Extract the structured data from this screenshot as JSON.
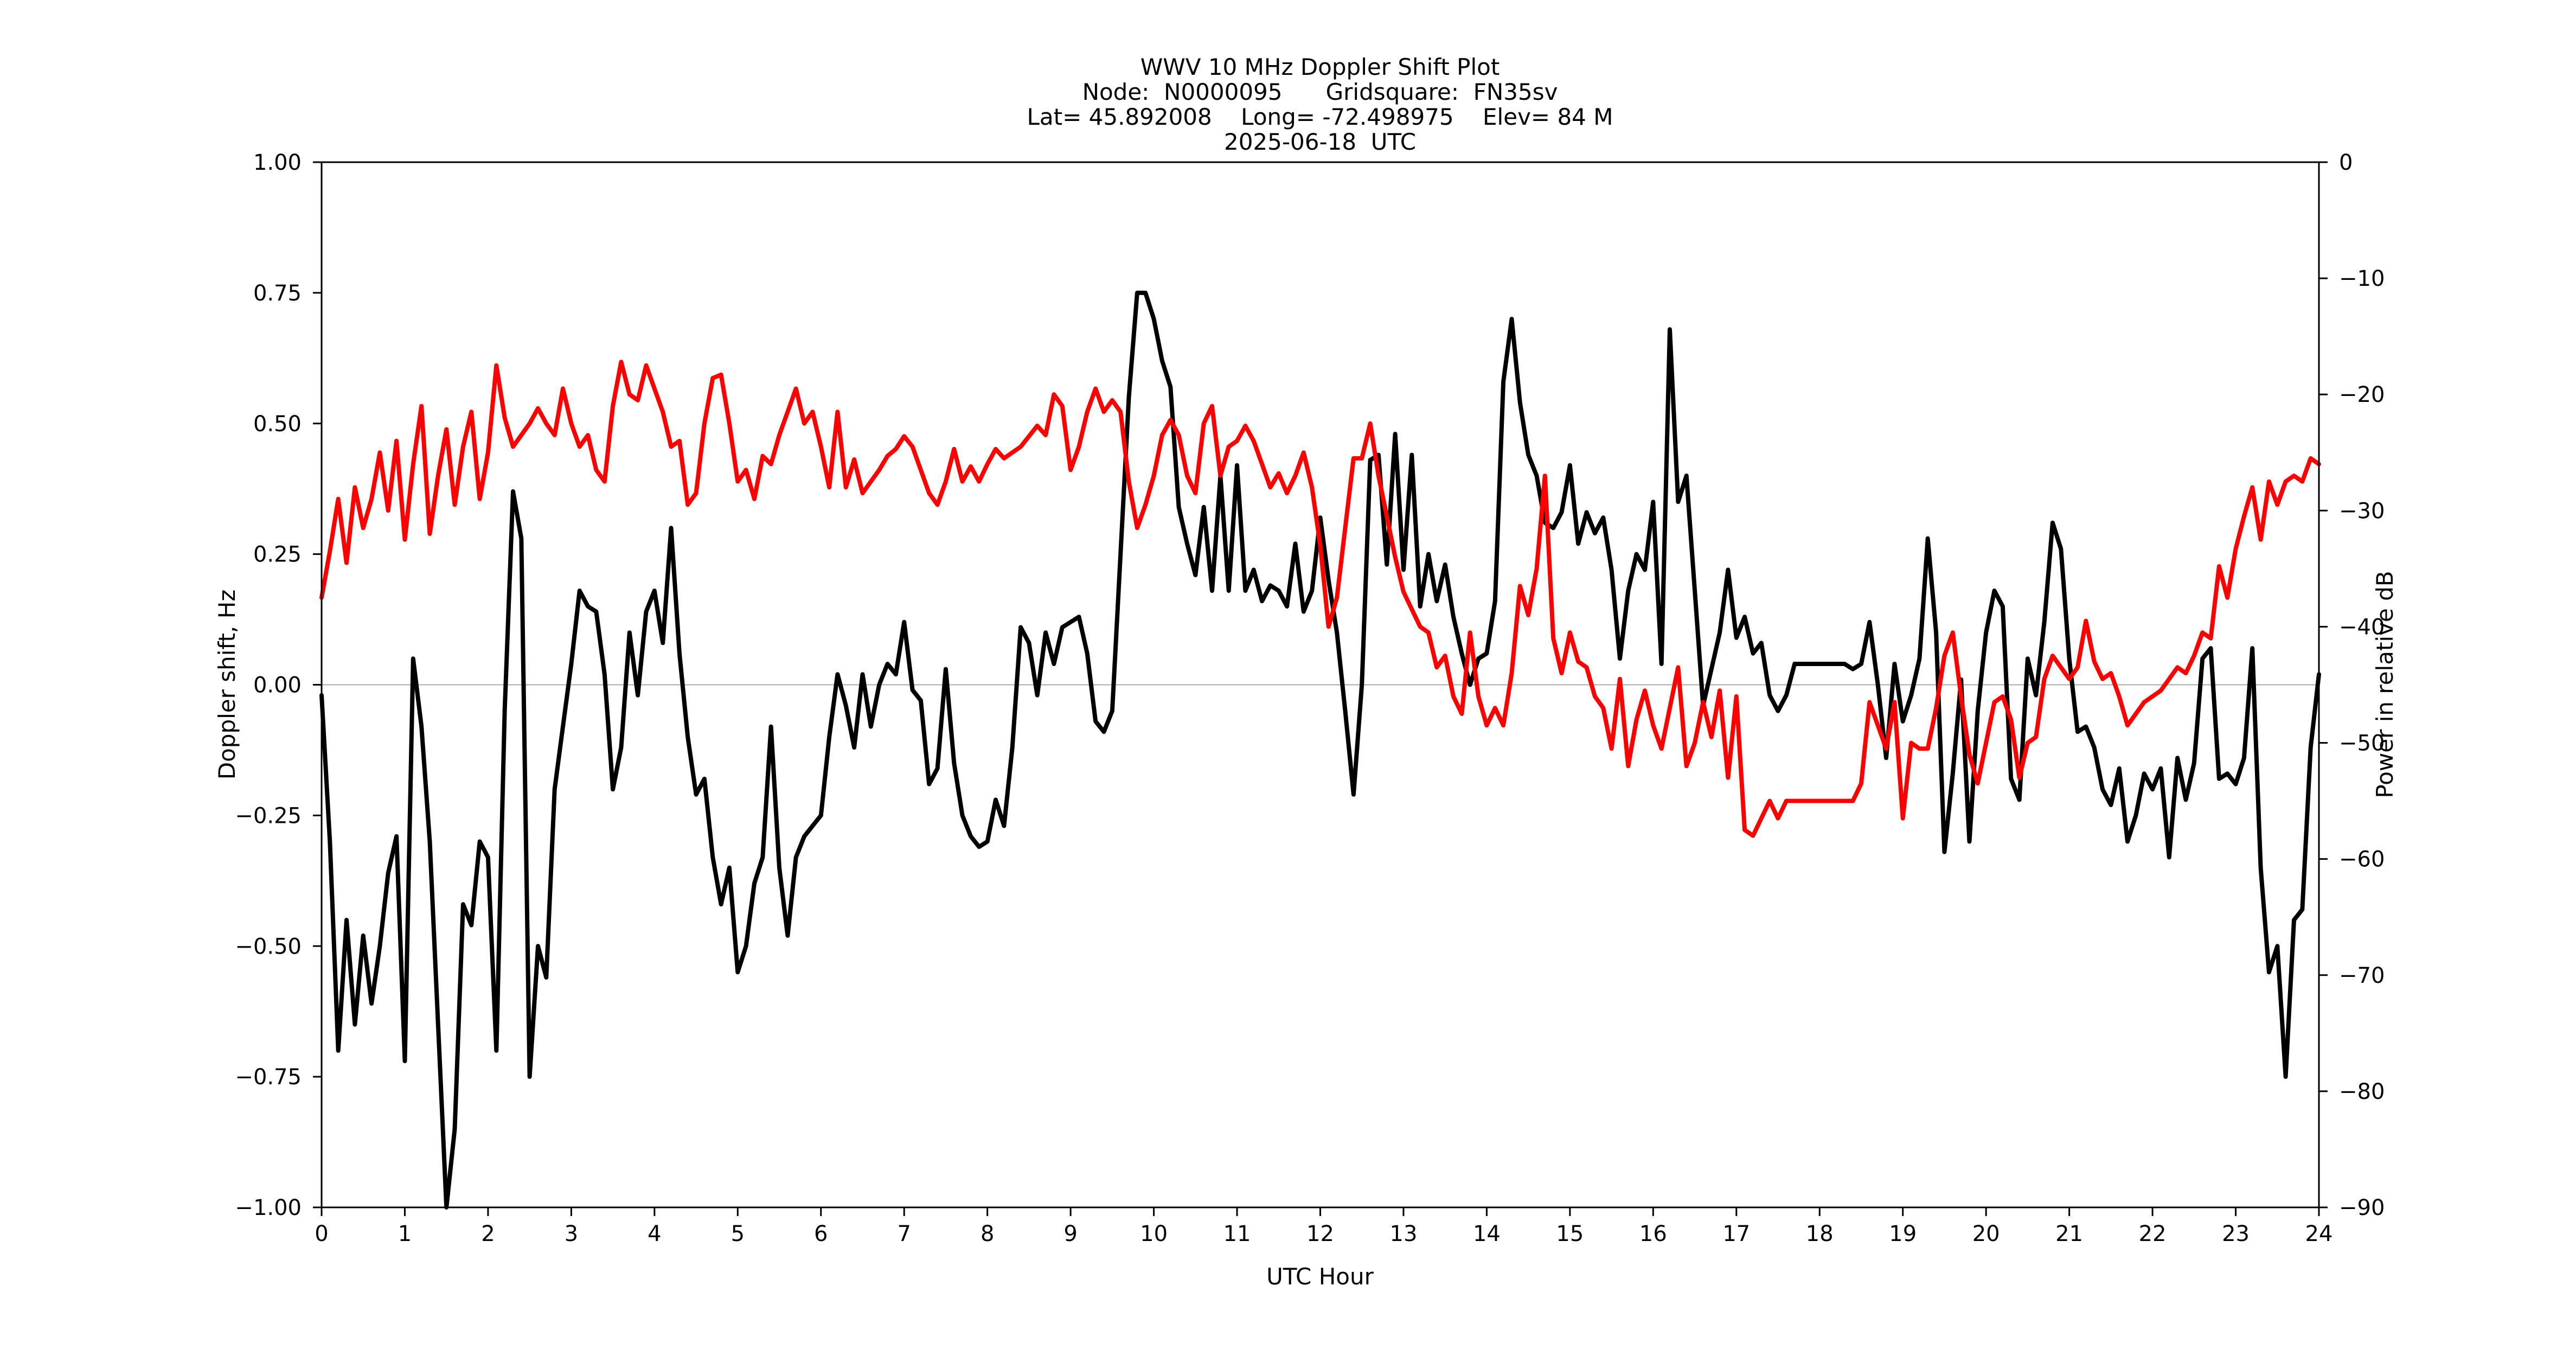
{
  "figure": {
    "title_line1": "WWV 10 MHz Doppler Shift Plot",
    "title_line2": "Node:  N0000095      Gridsquare:  FN35sv",
    "title_line3": "Lat= 45.892008    Long= -72.498975    Elev= 84 M",
    "title_line4": "2025-06-18  UTC",
    "background_color": "#ffffff"
  },
  "axes": {
    "x": {
      "label": "UTC Hour",
      "min": 0,
      "max": 24,
      "tick_values": [
        0,
        1,
        2,
        3,
        4,
        5,
        6,
        7,
        8,
        9,
        10,
        11,
        12,
        13,
        14,
        15,
        16,
        17,
        18,
        19,
        20,
        21,
        22,
        23,
        24
      ],
      "tick_labels": [
        "0",
        "1",
        "2",
        "3",
        "4",
        "5",
        "6",
        "7",
        "8",
        "9",
        "10",
        "11",
        "12",
        "13",
        "14",
        "15",
        "16",
        "17",
        "18",
        "19",
        "20",
        "21",
        "22",
        "23",
        "24"
      ]
    },
    "y_left": {
      "label": "Doppler shift, Hz",
      "min": -1.0,
      "max": 1.0,
      "tick_values": [
        1.0,
        0.75,
        0.5,
        0.25,
        0.0,
        -0.25,
        -0.5,
        -0.75,
        -1.0
      ],
      "tick_labels": [
        "1.00",
        "0.75",
        "0.50",
        "0.25",
        "0.00",
        "−0.25",
        "−0.50",
        "−0.75",
        "−1.00"
      ],
      "color": "#000000"
    },
    "y_right": {
      "label": "Power in relative dB",
      "min": -90,
      "max": 0,
      "tick_values": [
        0,
        -10,
        -20,
        -30,
        -40,
        -50,
        -60,
        -70,
        -80,
        -90
      ],
      "tick_labels": [
        "0",
        "−10",
        "−20",
        "−30",
        "−40",
        "−50",
        "−60",
        "−70",
        "−80",
        "−90"
      ],
      "color": "#ff0000"
    }
  },
  "chart_data": {
    "type": "line",
    "title": "WWV 10 MHz Doppler Shift Plot",
    "xlabel": "UTC Hour",
    "x_start": 0,
    "x_step": 0.1,
    "xlim": [
      0,
      24
    ],
    "grid": "horizontal zero line only",
    "zero_gridline": true,
    "gridline_color": "#aaaaaa",
    "series": [
      {
        "name": "doppler_shift_hz",
        "axis": "left",
        "ylim": [
          -1.0,
          1.0
        ],
        "color": "#000000",
        "values": [
          -0.02,
          -0.3,
          -0.7,
          -0.45,
          -0.65,
          -0.48,
          -0.61,
          -0.5,
          -0.36,
          -0.29,
          -0.72,
          0.05,
          -0.08,
          -0.3,
          -0.65,
          -1.0,
          -0.85,
          -0.42,
          -0.46,
          -0.3,
          -0.33,
          -0.7,
          -0.05,
          0.37,
          0.28,
          -0.75,
          -0.5,
          -0.56,
          -0.2,
          -0.08,
          0.04,
          0.18,
          0.15,
          0.14,
          0.02,
          -0.2,
          -0.12,
          0.1,
          -0.02,
          0.14,
          0.18,
          0.08,
          0.3,
          0.06,
          -0.1,
          -0.21,
          -0.18,
          -0.33,
          -0.42,
          -0.35,
          -0.55,
          -0.5,
          -0.38,
          -0.33,
          -0.08,
          -0.35,
          -0.48,
          -0.33,
          -0.29,
          -0.27,
          -0.25,
          -0.1,
          0.02,
          -0.04,
          -0.12,
          0.02,
          -0.08,
          0.0,
          0.04,
          0.02,
          0.12,
          -0.01,
          -0.03,
          -0.19,
          -0.16,
          0.03,
          -0.15,
          -0.25,
          -0.29,
          -0.31,
          -0.3,
          -0.22,
          -0.27,
          -0.12,
          0.11,
          0.08,
          -0.02,
          0.1,
          0.04,
          0.11,
          0.12,
          0.13,
          0.06,
          -0.07,
          -0.09,
          -0.05,
          0.25,
          0.55,
          0.75,
          0.75,
          0.7,
          0.62,
          0.57,
          0.34,
          0.27,
          0.21,
          0.34,
          0.18,
          0.4,
          0.18,
          0.42,
          0.18,
          0.22,
          0.16,
          0.19,
          0.18,
          0.15,
          0.27,
          0.14,
          0.18,
          0.32,
          0.2,
          0.1,
          -0.05,
          -0.21,
          0.0,
          0.43,
          0.44,
          0.23,
          0.48,
          0.22,
          0.44,
          0.15,
          0.25,
          0.16,
          0.23,
          0.13,
          0.06,
          0.0,
          0.05,
          0.06,
          0.16,
          0.58,
          0.7,
          0.54,
          0.44,
          0.4,
          0.31,
          0.3,
          0.33,
          0.42,
          0.27,
          0.33,
          0.29,
          0.32,
          0.22,
          0.05,
          0.18,
          0.25,
          0.22,
          0.35,
          0.04,
          0.68,
          0.35,
          0.4,
          0.18,
          -0.04,
          0.03,
          0.1,
          0.22,
          0.09,
          0.13,
          0.06,
          0.08,
          -0.02,
          -0.05,
          -0.02,
          0.04,
          0.04,
          0.04,
          0.04,
          0.04,
          0.04,
          0.04,
          0.03,
          0.04,
          0.12,
          0.0,
          -0.14,
          0.04,
          -0.07,
          -0.02,
          0.05,
          0.28,
          0.1,
          -0.32,
          -0.17,
          0.01,
          -0.3,
          -0.05,
          0.1,
          0.18,
          0.15,
          -0.18,
          -0.22,
          0.05,
          -0.02,
          0.12,
          0.31,
          0.26,
          0.05,
          -0.09,
          -0.08,
          -0.12,
          -0.2,
          -0.23,
          -0.16,
          -0.3,
          -0.25,
          -0.17,
          -0.2,
          -0.16,
          -0.33,
          -0.14,
          -0.22,
          -0.15,
          0.05,
          0.07,
          -0.18,
          -0.17,
          -0.19,
          -0.14,
          0.07,
          -0.35,
          -0.55,
          -0.5,
          -0.75,
          -0.45,
          -0.43,
          -0.12,
          0.02
        ]
      },
      {
        "name": "power_relative_db",
        "axis": "right",
        "ylim": [
          -90,
          0
        ],
        "color": "#ff0000",
        "values": [
          -37.5,
          -33.5,
          -29.0,
          -34.5,
          -28.0,
          -31.5,
          -29.0,
          -25.0,
          -30.0,
          -24.0,
          -32.5,
          -26.0,
          -21.0,
          -32.0,
          -27.0,
          -23.0,
          -29.5,
          -24.5,
          -21.5,
          -29.0,
          -25.0,
          -17.5,
          -22.0,
          -24.5,
          -23.5,
          -22.5,
          -21.2,
          -22.5,
          -23.5,
          -19.5,
          -22.5,
          -24.5,
          -23.5,
          -26.5,
          -27.5,
          -21.0,
          -17.2,
          -20.0,
          -20.5,
          -17.5,
          -19.5,
          -21.5,
          -24.5,
          -24.0,
          -29.5,
          -28.5,
          -22.5,
          -18.6,
          -18.3,
          -22.5,
          -27.5,
          -26.5,
          -29.0,
          -25.3,
          -26.0,
          -23.5,
          -21.5,
          -19.5,
          -22.5,
          -21.5,
          -24.5,
          -28.0,
          -21.5,
          -28.0,
          -25.6,
          -28.5,
          -27.5,
          -26.5,
          -25.3,
          -24.7,
          -23.6,
          -24.5,
          -26.5,
          -28.5,
          -29.5,
          -27.5,
          -24.7,
          -27.5,
          -26.2,
          -27.5,
          -26.0,
          -24.7,
          -25.5,
          -25.0,
          -24.5,
          -23.6,
          -22.7,
          -23.5,
          -20.0,
          -21.0,
          -26.5,
          -24.5,
          -21.5,
          -19.5,
          -21.5,
          -20.5,
          -21.5,
          -27.5,
          -31.5,
          -29.5,
          -27.0,
          -23.5,
          -22.2,
          -23.5,
          -27.0,
          -28.5,
          -22.5,
          -21.0,
          -27.0,
          -24.5,
          -24.0,
          -22.7,
          -24.0,
          -26.0,
          -28.0,
          -26.8,
          -28.5,
          -27.0,
          -25.0,
          -28.0,
          -33.0,
          -40.0,
          -37.5,
          -31.5,
          -25.5,
          -25.5,
          -22.5,
          -27.0,
          -30.5,
          -34.0,
          -37.0,
          -38.5,
          -40.0,
          -40.5,
          -43.5,
          -42.5,
          -46.0,
          -47.5,
          -40.5,
          -46.0,
          -48.5,
          -47.0,
          -48.5,
          -44.0,
          -36.5,
          -39.0,
          -35.0,
          -27.0,
          -41.0,
          -44.0,
          -40.5,
          -43.0,
          -43.5,
          -46.0,
          -47.0,
          -50.5,
          -44.5,
          -52.0,
          -48.0,
          -45.5,
          -48.5,
          -50.5,
          -47.0,
          -43.5,
          -52.0,
          -50.0,
          -46.5,
          -49.5,
          -45.5,
          -53.0,
          -46.0,
          -57.5,
          -58.0,
          -56.5,
          -55.0,
          -56.5,
          -55.0,
          -55.0,
          -55.0,
          -55.0,
          -55.0,
          -55.0,
          -55.0,
          -55.0,
          -55.0,
          -53.5,
          -46.5,
          -48.5,
          -50.5,
          -46.5,
          -56.5,
          -50.0,
          -50.5,
          -50.5,
          -47.0,
          -42.5,
          -40.5,
          -46.0,
          -51.0,
          -53.5,
          -50.0,
          -46.5,
          -46.0,
          -48.0,
          -53.0,
          -50.0,
          -49.5,
          -44.5,
          -42.5,
          -43.5,
          -44.5,
          -43.5,
          -39.5,
          -43.0,
          -44.5,
          -44.0,
          -46.0,
          -48.5,
          -47.5,
          -46.5,
          -46.0,
          -45.5,
          -44.5,
          -43.5,
          -44.0,
          -42.5,
          -40.5,
          -41.0,
          -34.8,
          -37.5,
          -33.3,
          -30.5,
          -28.0,
          -32.5,
          -27.5,
          -29.5,
          -27.5,
          -27.0,
          -27.5,
          -25.5,
          -26.0
        ]
      }
    ]
  }
}
